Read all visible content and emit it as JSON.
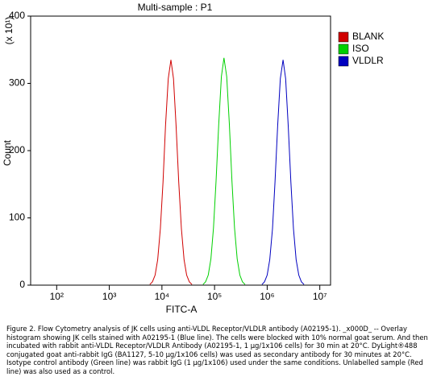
{
  "chart_data": {
    "type": "line",
    "title": "Multi-sample : P1",
    "xlabel": "FITC-A",
    "ylabel": "Count",
    "y_multiplier": "(x 10¹)",
    "xscale": "log",
    "xlim": [
      32,
      16000000
    ],
    "xticks": [
      {
        "value": 100,
        "label": "10²"
      },
      {
        "value": 1000,
        "label": "10³"
      },
      {
        "value": 10000,
        "label": "10⁴"
      },
      {
        "value": 100000,
        "label": "10⁵"
      },
      {
        "value": 1000000,
        "label": "10⁶"
      },
      {
        "value": 10000000,
        "label": "10⁷"
      }
    ],
    "ylim": [
      0,
      400
    ],
    "yticks": [
      0,
      100,
      200,
      300,
      400
    ],
    "legend": "right",
    "series": [
      {
        "name": "BLANK",
        "color": "#d00000",
        "x": [
          5890,
          6610,
          7410,
          8320,
          9330,
          10500,
          11700,
          13200,
          14800,
          16600,
          18600,
          20900,
          23400,
          26300,
          29500,
          33100,
          37200
        ],
        "values": [
          1,
          5,
          15,
          38,
          84,
          153,
          237,
          307,
          335,
          307,
          237,
          153,
          84,
          38,
          15,
          5,
          1
        ]
      },
      {
        "name": "ISO",
        "color": "#00d000",
        "x": [
          60300,
          67600,
          75900,
          85100,
          95500,
          107000,
          120000,
          135000,
          151000,
          170000,
          191000,
          214000,
          240000,
          269000,
          302000,
          339000,
          380000
        ],
        "values": [
          1,
          5,
          15,
          39,
          85,
          155,
          239,
          310,
          338,
          310,
          239,
          155,
          85,
          39,
          15,
          5,
          1
        ]
      },
      {
        "name": "VLDLR",
        "color": "#0000c0",
        "x": [
          794000,
          891000,
          1000000,
          1120000,
          1260000,
          1410000,
          1580000,
          1780000,
          2000000,
          2240000,
          2510000,
          2820000,
          3160000,
          3550000,
          3980000,
          4470000,
          5010000
        ],
        "values": [
          1,
          5,
          15,
          38,
          84,
          153,
          237,
          307,
          335,
          307,
          237,
          153,
          84,
          38,
          15,
          5,
          1
        ]
      }
    ]
  },
  "caption": "Figure 2. Flow Cytometry analysis of JK cells using anti-VLDL Receptor/VLDLR antibody (A02195-1). _x000D_ -- Overlay histogram showing JK cells stained with A02195-1 (Blue line). The cells were blocked with 10% normal goat serum. And then incubated with rabbit anti-VLDL Receptor/VLDLR Antibody (A02195-1, 1 μg/1x106 cells) for 30 min at 20°C. DyLight®488 conjugated goat anti-rabbit IgG (BA1127, 5-10 μg/1x106 cells) was used as secondary antibody for 30 minutes at 20°C. Isotype control antibody (Green line) was rabbit IgG (1 μg/1x106) used under the same conditions. Unlabelled sample (Red line) was also used as a control."
}
